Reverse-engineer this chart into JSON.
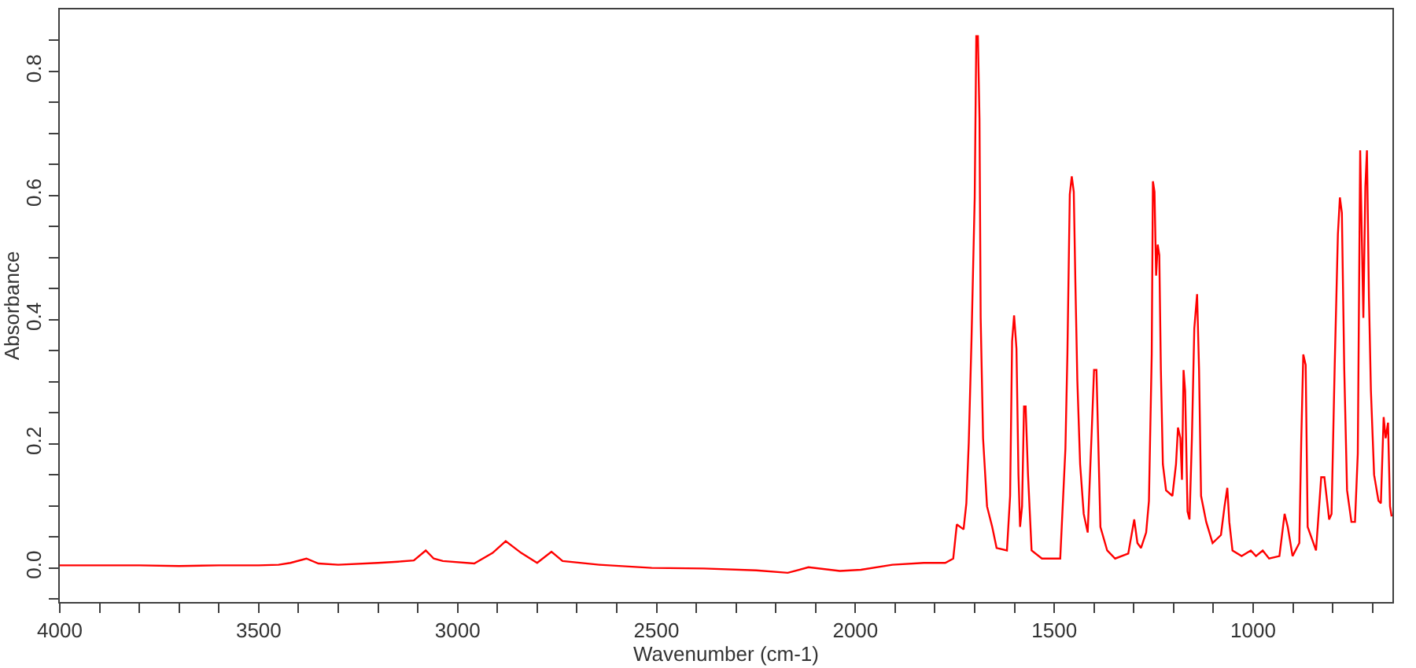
{
  "chart_data": {
    "type": "line",
    "xlabel": "Wavenumber (cm-1)",
    "ylabel": "Absorbance",
    "xlim": [
      4000,
      650
    ],
    "ylim": [
      -0.055,
      0.9
    ],
    "xticks": [
      4000,
      {
        "value": 3900,
        "label": null
      },
      {
        "value": 3800,
        "label": null
      },
      {
        "value": 3700,
        "label": null
      },
      {
        "value": 3600,
        "label": null
      },
      3500,
      {
        "value": 3400,
        "label": null
      },
      {
        "value": 3300,
        "label": null
      },
      {
        "value": 3200,
        "label": null
      },
      {
        "value": 3100,
        "label": null
      },
      3000,
      {
        "value": 2900,
        "label": null
      },
      {
        "value": 2800,
        "label": null
      },
      {
        "value": 2700,
        "label": null
      },
      {
        "value": 2600,
        "label": null
      },
      2500,
      {
        "value": 2400,
        "label": null
      },
      {
        "value": 2300,
        "label": null
      },
      {
        "value": 2200,
        "label": null
      },
      {
        "value": 2100,
        "label": null
      },
      2000,
      {
        "value": 1900,
        "label": null
      },
      {
        "value": 1800,
        "label": null
      },
      {
        "value": 1700,
        "label": null
      },
      {
        "value": 1600,
        "label": null
      },
      1500,
      {
        "value": 1400,
        "label": null
      },
      {
        "value": 1300,
        "label": null
      },
      {
        "value": 1200,
        "label": null
      },
      {
        "value": 1100,
        "label": null
      },
      1000,
      {
        "value": 900,
        "label": null
      },
      {
        "value": 800,
        "label": null
      },
      {
        "value": 700,
        "label": null
      }
    ],
    "yticks": [
      {
        "value": -0.05,
        "label": null
      },
      {
        "value": 0,
        "label": "0.0"
      },
      {
        "value": 0.05,
        "label": null
      },
      {
        "value": 0.1,
        "label": null
      },
      {
        "value": 0.15,
        "label": null
      },
      0.2,
      {
        "value": 0.25,
        "label": null
      },
      {
        "value": 0.3,
        "label": null
      },
      {
        "value": 0.35,
        "label": null
      },
      0.4,
      {
        "value": 0.45,
        "label": null
      },
      {
        "value": 0.5,
        "label": null
      },
      {
        "value": 0.55,
        "label": null
      },
      0.6,
      {
        "value": 0.65,
        "label": null
      },
      {
        "value": 0.7,
        "label": null
      },
      {
        "value": 0.75,
        "label": null
      },
      0.8,
      {
        "value": 0.85,
        "label": null
      }
    ],
    "marker": "none",
    "line_style": "solid",
    "series": [
      {
        "color": "#ff0000",
        "x": [
          4000,
          3900,
          3800,
          3700,
          3600,
          3500,
          3450,
          3420,
          3380,
          3350,
          3300,
          3200,
          3150,
          3110,
          3080,
          3060,
          3037,
          2958,
          2912,
          2879,
          2840,
          2800,
          2764,
          2736,
          2644,
          2512,
          2381,
          2249,
          2170,
          2118,
          2039,
          1986,
          1907,
          1828,
          1774,
          1754,
          1745,
          1728,
          1721,
          1715,
          1708,
          1700,
          1696,
          1692,
          1688,
          1685,
          1679,
          1669,
          1656,
          1645,
          1619,
          1611,
          1606,
          1601,
          1595,
          1590,
          1586,
          1581,
          1576,
          1572,
          1566,
          1557,
          1531,
          1485,
          1472,
          1467,
          1461,
          1456,
          1451,
          1447,
          1442,
          1435,
          1426,
          1416,
          1406,
          1400,
          1394,
          1390,
          1384,
          1367,
          1347,
          1314,
          1299,
          1291,
          1282,
          1269,
          1262,
          1255,
          1252,
          1248,
          1244,
          1240,
          1236,
          1232,
          1227,
          1219,
          1203,
          1194,
          1189,
          1183,
          1179,
          1175,
          1171,
          1165,
          1160,
          1154,
          1148,
          1141,
          1136,
          1131,
          1118,
          1102,
          1081,
          1072,
          1065,
          1060,
          1052,
          1029,
          1006,
          993,
          976,
          960,
          934,
          921,
          913,
          901,
          884,
          879,
          874,
          868,
          863,
          842,
          829,
          821,
          809,
          803,
          795,
          787,
          782,
          777,
          771,
          764,
          753,
          744,
          737,
          731,
          727,
          723,
          718,
          714,
          709,
          704,
          696,
          685,
          679,
          672,
          667,
          661,
          656,
          652
        ],
        "values": [
          0.004,
          0.004,
          0.004,
          0.003,
          0.004,
          0.004,
          0.005,
          0.008,
          0.015,
          0.007,
          0.005,
          0.008,
          0.01,
          0.012,
          0.028,
          0.015,
          0.011,
          0.007,
          0.024,
          0.043,
          0.024,
          0.008,
          0.026,
          0.011,
          0.005,
          0.0,
          -0.001,
          -0.004,
          -0.008,
          0.001,
          -0.005,
          -0.003,
          0.005,
          0.008,
          0.008,
          0.015,
          0.07,
          0.062,
          0.104,
          0.201,
          0.37,
          0.597,
          0.857,
          0.857,
          0.724,
          0.403,
          0.209,
          0.099,
          0.066,
          0.032,
          0.028,
          0.116,
          0.365,
          0.407,
          0.353,
          0.15,
          0.066,
          0.099,
          0.26,
          0.26,
          0.15,
          0.028,
          0.015,
          0.015,
          0.192,
          0.344,
          0.602,
          0.631,
          0.606,
          0.462,
          0.302,
          0.167,
          0.087,
          0.057,
          0.218,
          0.319,
          0.319,
          0.218,
          0.066,
          0.028,
          0.015,
          0.023,
          0.078,
          0.04,
          0.032,
          0.057,
          0.108,
          0.344,
          0.623,
          0.606,
          0.471,
          0.521,
          0.504,
          0.319,
          0.167,
          0.125,
          0.116,
          0.167,
          0.226,
          0.209,
          0.142,
          0.319,
          0.285,
          0.091,
          0.078,
          0.209,
          0.386,
          0.441,
          0.319,
          0.116,
          0.074,
          0.04,
          0.053,
          0.099,
          0.129,
          0.074,
          0.028,
          0.019,
          0.028,
          0.019,
          0.028,
          0.015,
          0.019,
          0.087,
          0.066,
          0.019,
          0.04,
          0.209,
          0.344,
          0.327,
          0.066,
          0.028,
          0.146,
          0.146,
          0.078,
          0.087,
          0.327,
          0.538,
          0.597,
          0.572,
          0.319,
          0.125,
          0.074,
          0.074,
          0.184,
          0.673,
          0.538,
          0.403,
          0.614,
          0.673,
          0.437,
          0.285,
          0.15,
          0.108,
          0.104,
          0.243,
          0.209,
          0.234,
          0.099,
          0.083
        ]
      }
    ]
  }
}
